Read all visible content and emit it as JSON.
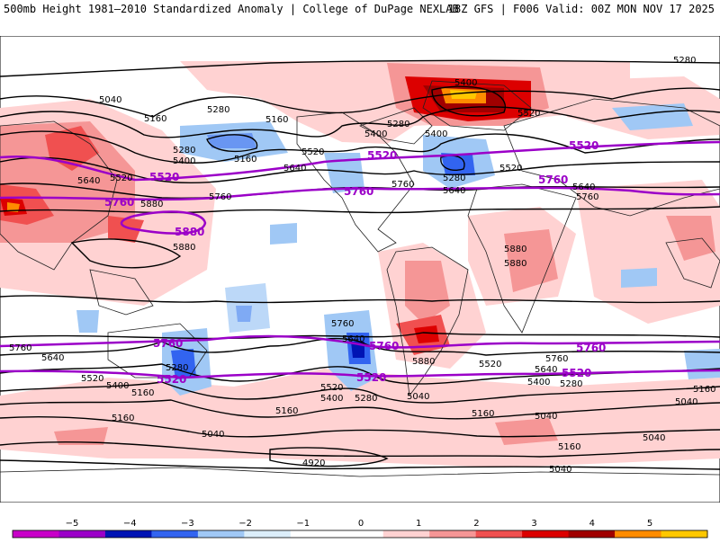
{
  "header": {
    "title": "500mb Height 1981–2010 Standardized Anomaly | College of DuPage NEXLAB",
    "model_info": "18Z GFS | F006 Valid: 00Z MON NOV 17 2025"
  },
  "map": {
    "contour_labels": [
      {
        "id": "5280-ne",
        "text": "5280"
      },
      {
        "id": "5040-a",
        "text": "5040"
      },
      {
        "id": "5160-a",
        "text": "5160"
      },
      {
        "id": "5280-b",
        "text": "5280"
      },
      {
        "id": "5160-b",
        "text": "5160"
      },
      {
        "id": "5400-a",
        "text": "5400"
      },
      {
        "id": "5280-c",
        "text": "5280"
      },
      {
        "id": "5400-b",
        "text": "5400"
      },
      {
        "id": "5160-c",
        "text": "5160"
      },
      {
        "id": "5520-a",
        "text": "5520"
      },
      {
        "id": "5640-a",
        "text": "5640"
      },
      {
        "id": "5400-c",
        "text": "5400"
      },
      {
        "id": "5400-d",
        "text": "5400"
      },
      {
        "id": "5280-d",
        "text": "5280"
      },
      {
        "id": "5520-b",
        "text": "5520"
      },
      {
        "id": "5520-c",
        "text": "5520"
      },
      {
        "id": "5760-a",
        "text": "5760"
      },
      {
        "id": "5280-e",
        "text": "5280"
      },
      {
        "id": "5640-b",
        "text": "5640"
      },
      {
        "id": "5640-c",
        "text": "5640"
      },
      {
        "id": "5520-d",
        "text": "5520"
      },
      {
        "id": "5640-d",
        "text": "5640"
      },
      {
        "id": "5760-b",
        "text": "5760"
      },
      {
        "id": "5760-c",
        "text": "5760"
      },
      {
        "id": "5880-a",
        "text": "5880"
      },
      {
        "id": "5880-b",
        "text": "5880"
      },
      {
        "id": "5880-c",
        "text": "5880"
      },
      {
        "id": "5880-d",
        "text": "5880"
      },
      {
        "id": "5760-d",
        "text": "5760"
      },
      {
        "id": "5640-e",
        "text": "5640"
      },
      {
        "id": "5760-e",
        "text": "5760"
      },
      {
        "id": "5640-f",
        "text": "5640"
      },
      {
        "id": "5880-e",
        "text": "5880"
      },
      {
        "id": "5520-e",
        "text": "5520"
      },
      {
        "id": "5400-e",
        "text": "5400"
      },
      {
        "id": "5280-f",
        "text": "5280"
      },
      {
        "id": "5760-f",
        "text": "5760"
      },
      {
        "id": "5640-g",
        "text": "5640"
      },
      {
        "id": "5520-f",
        "text": "5520"
      },
      {
        "id": "5400-f",
        "text": "5400"
      },
      {
        "id": "5280-g",
        "text": "5280"
      },
      {
        "id": "5520-g",
        "text": "5520"
      },
      {
        "id": "5400-g",
        "text": "5400"
      },
      {
        "id": "5280-h",
        "text": "5280"
      },
      {
        "id": "5160-d",
        "text": "5160"
      },
      {
        "id": "5040-b",
        "text": "5040"
      },
      {
        "id": "5160-e",
        "text": "5160"
      },
      {
        "id": "5040-c",
        "text": "5040"
      },
      {
        "id": "5160-f",
        "text": "5160"
      },
      {
        "id": "5040-d",
        "text": "5040"
      },
      {
        "id": "5160-g",
        "text": "5160"
      },
      {
        "id": "5040-e",
        "text": "5040"
      },
      {
        "id": "4920-a",
        "text": "4920"
      },
      {
        "id": "5040-f",
        "text": "5040"
      },
      {
        "id": "5160-h",
        "text": "5160"
      },
      {
        "id": "5160-i",
        "text": "5160"
      },
      {
        "id": "5040-g",
        "text": "5040"
      }
    ],
    "bold_contour_labels": [
      {
        "id": "b5520-1",
        "text": "5520"
      },
      {
        "id": "b5520-2",
        "text": "5520"
      },
      {
        "id": "b5520-3",
        "text": "5520"
      },
      {
        "id": "b5760-1",
        "text": "5760"
      },
      {
        "id": "b5760-2",
        "text": "5760"
      },
      {
        "id": "b5760-3",
        "text": "5760"
      },
      {
        "id": "b5880-1",
        "text": "5880"
      },
      {
        "id": "b5760-4",
        "text": "5760"
      },
      {
        "id": "b5760-5",
        "text": "5760"
      },
      {
        "id": "b5760-6",
        "text": "5760"
      },
      {
        "id": "b5520-4",
        "text": "5520"
      },
      {
        "id": "b5520-5",
        "text": "5520"
      },
      {
        "id": "b5520-6",
        "text": "5520"
      }
    ]
  },
  "colorbar": {
    "ticks": [
      "−5",
      "−4",
      "−3",
      "−2",
      "−1",
      "0",
      "1",
      "2",
      "3",
      "4",
      "5"
    ],
    "colors": [
      "#c800c8",
      "#9b00c8",
      "#0014b4",
      "#3264f0",
      "#a0c8f5",
      "#dceefa",
      "#ffffff",
      "#ffffff",
      "#ffd2d2",
      "#f59696",
      "#f05050",
      "#dc0000",
      "#a00000",
      "#ff8c00",
      "#ffc800"
    ]
  }
}
